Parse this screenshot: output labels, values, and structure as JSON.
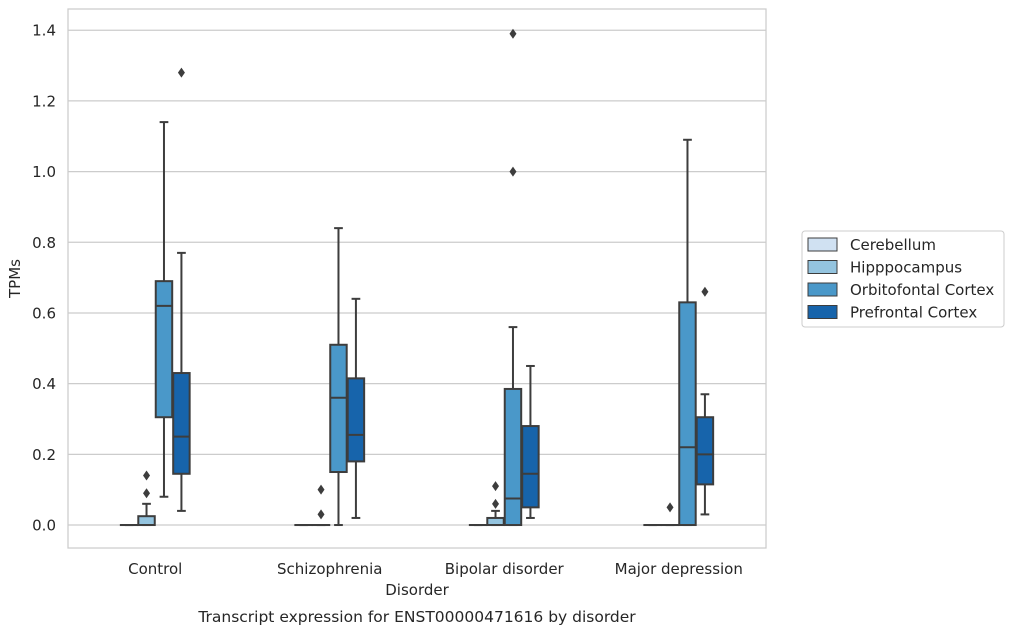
{
  "chart_data": {
    "type": "box",
    "title": "",
    "caption": "Transcript expression for ENST00000471616 by disorder",
    "xlabel": "Disorder",
    "ylabel": "TPMs",
    "ylim": [
      -0.065,
      1.46
    ],
    "yticks": [
      0.0,
      0.2,
      0.4,
      0.6,
      0.8,
      1.0,
      1.2,
      1.4
    ],
    "ytick_labels": [
      "0.0",
      "0.2",
      "0.4",
      "0.6",
      "0.8",
      "1.0",
      "1.2",
      "1.4"
    ],
    "grid": "horizontal",
    "legend_position": "outside-right",
    "categories": [
      "Control",
      "Schizophrenia",
      "Bipolar disorder",
      "Major depression"
    ],
    "series": [
      {
        "name": "Cerebellum",
        "color": "#d0e1f2",
        "boxes": [
          {
            "q1": 0.0,
            "median": 0.0,
            "q3": 0.0,
            "whisker_low": 0.0,
            "whisker_high": 0.0,
            "outliers": []
          },
          {
            "q1": 0.0,
            "median": 0.0,
            "q3": 0.0,
            "whisker_low": 0.0,
            "whisker_high": 0.0,
            "outliers": []
          },
          {
            "q1": 0.0,
            "median": 0.0,
            "q3": 0.0,
            "whisker_low": 0.0,
            "whisker_high": 0.0,
            "outliers": []
          },
          {
            "q1": 0.0,
            "median": 0.0,
            "q3": 0.0,
            "whisker_low": 0.0,
            "whisker_high": 0.0,
            "outliers": []
          }
        ]
      },
      {
        "name": "Hipppocampus",
        "color": "#94c4df",
        "boxes": [
          {
            "q1": 0.0,
            "median": 0.0,
            "q3": 0.025,
            "whisker_low": 0.0,
            "whisker_high": 0.06,
            "outliers": [
              0.09,
              0.14
            ]
          },
          {
            "q1": 0.0,
            "median": 0.0,
            "q3": 0.0,
            "whisker_low": 0.0,
            "whisker_high": 0.0,
            "outliers": [
              0.03,
              0.1
            ]
          },
          {
            "q1": 0.0,
            "median": 0.0,
            "q3": 0.02,
            "whisker_low": 0.0,
            "whisker_high": 0.04,
            "outliers": [
              0.06,
              0.11
            ]
          },
          {
            "q1": 0.0,
            "median": 0.0,
            "q3": 0.0,
            "whisker_low": 0.0,
            "whisker_high": 0.0,
            "outliers": [
              0.05
            ]
          }
        ]
      },
      {
        "name": "Orbitofontal Cortex",
        "color": "#4a98c9",
        "boxes": [
          {
            "q1": 0.305,
            "median": 0.62,
            "q3": 0.69,
            "whisker_low": 0.08,
            "whisker_high": 1.14,
            "outliers": []
          },
          {
            "q1": 0.15,
            "median": 0.36,
            "q3": 0.51,
            "whisker_low": 0.0,
            "whisker_high": 0.84,
            "outliers": []
          },
          {
            "q1": 0.0,
            "median": 0.075,
            "q3": 0.385,
            "whisker_low": 0.0,
            "whisker_high": 0.56,
            "outliers": [
              1.0,
              1.39
            ]
          },
          {
            "q1": 0.0,
            "median": 0.22,
            "q3": 0.63,
            "whisker_low": 0.0,
            "whisker_high": 1.09,
            "outliers": []
          }
        ]
      },
      {
        "name": "Prefrontal Cortex",
        "color": "#1764ab",
        "boxes": [
          {
            "q1": 0.145,
            "median": 0.25,
            "q3": 0.43,
            "whisker_low": 0.04,
            "whisker_high": 0.77,
            "outliers": [
              1.28
            ]
          },
          {
            "q1": 0.18,
            "median": 0.255,
            "q3": 0.415,
            "whisker_low": 0.02,
            "whisker_high": 0.64,
            "outliers": []
          },
          {
            "q1": 0.05,
            "median": 0.145,
            "q3": 0.28,
            "whisker_low": 0.02,
            "whisker_high": 0.45,
            "outliers": []
          },
          {
            "q1": 0.115,
            "median": 0.2,
            "q3": 0.305,
            "whisker_low": 0.03,
            "whisker_high": 0.37,
            "outliers": [
              0.66
            ]
          }
        ]
      }
    ]
  }
}
